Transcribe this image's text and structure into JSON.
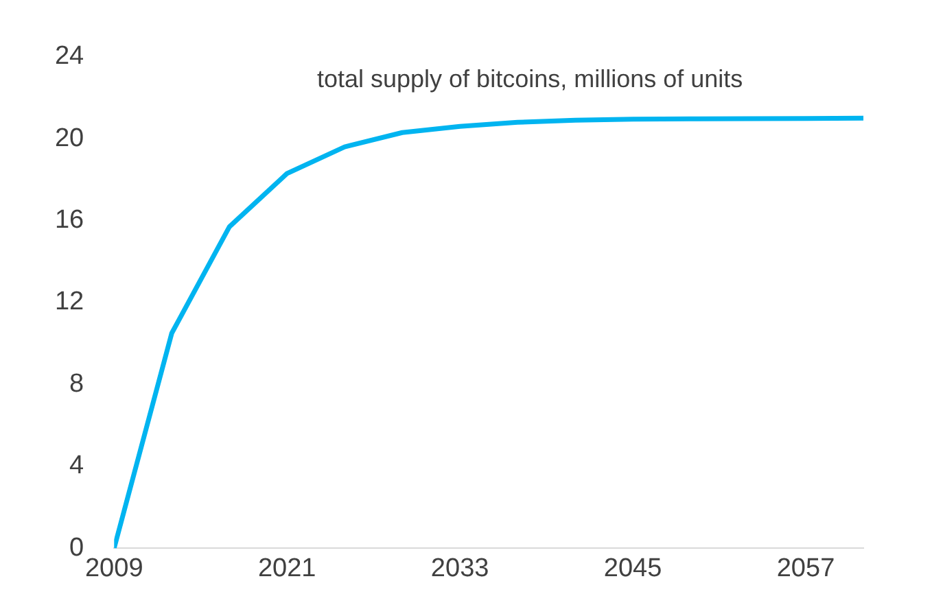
{
  "chart_data": {
    "type": "line",
    "title": "total supply of bitcoins, millions of units",
    "x": [
      2009,
      2013,
      2017,
      2021,
      2025,
      2029,
      2033,
      2037,
      2041,
      2045,
      2049,
      2053,
      2057,
      2061
    ],
    "series": [
      {
        "color": "#00b4f0",
        "values": [
          0,
          10.5,
          15.7,
          18.3,
          19.6,
          20.3,
          20.6,
          20.8,
          20.9,
          20.95,
          20.97,
          20.98,
          20.99,
          21
        ]
      }
    ],
    "xlim": [
      2009,
      2061
    ],
    "xticks": [
      2009,
      2021,
      2033,
      2045,
      2057
    ],
    "ylim": [
      0,
      24
    ],
    "yticks": [
      0,
      4,
      8,
      12,
      16,
      20,
      24
    ],
    "grid": false,
    "legend": false,
    "marker": "none",
    "line_style": "solid"
  }
}
